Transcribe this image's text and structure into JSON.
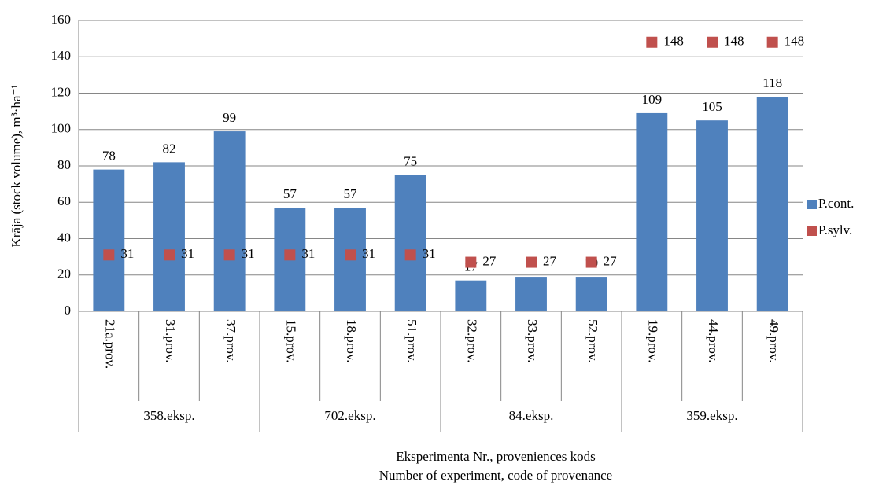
{
  "chart_data": {
    "type": "bar",
    "ylabel": "Krāja (stock volume),  m³·ha⁻¹",
    "xlabel": [
      "Eksperimenta  Nr., proveniences  kods",
      "Number of experiment,  code of provenance"
    ],
    "groups": [
      {
        "name": "358.eksp.",
        "categories": [
          "21a.prov.",
          "31.prov.",
          "37.prov."
        ]
      },
      {
        "name": "702.eksp.",
        "categories": [
          "15.prov.",
          "18.prov.",
          "51.prov."
        ]
      },
      {
        "name": "84.eksp.",
        "categories": [
          "32.prov.",
          "33.prov.",
          "52.prov."
        ]
      },
      {
        "name": "359.eksp.",
        "categories": [
          "19.prov.",
          "44.prov.",
          "49.prov."
        ]
      }
    ],
    "series": [
      {
        "name": "P.cont.",
        "type": "bar",
        "color": "#4f81bd",
        "values": [
          78,
          82,
          99,
          57,
          57,
          75,
          17,
          19,
          19,
          109,
          105,
          118
        ]
      },
      {
        "name": "P.sylv.",
        "type": "scatter",
        "color": "#c0504d",
        "values": [
          31,
          31,
          31,
          31,
          31,
          31,
          27,
          27,
          27,
          148,
          148,
          148
        ]
      }
    ],
    "ylim": [
      0,
      160
    ],
    "yticks": [
      0,
      20,
      40,
      60,
      80,
      100,
      120,
      140,
      160
    ],
    "grid": true,
    "legend": "right"
  }
}
